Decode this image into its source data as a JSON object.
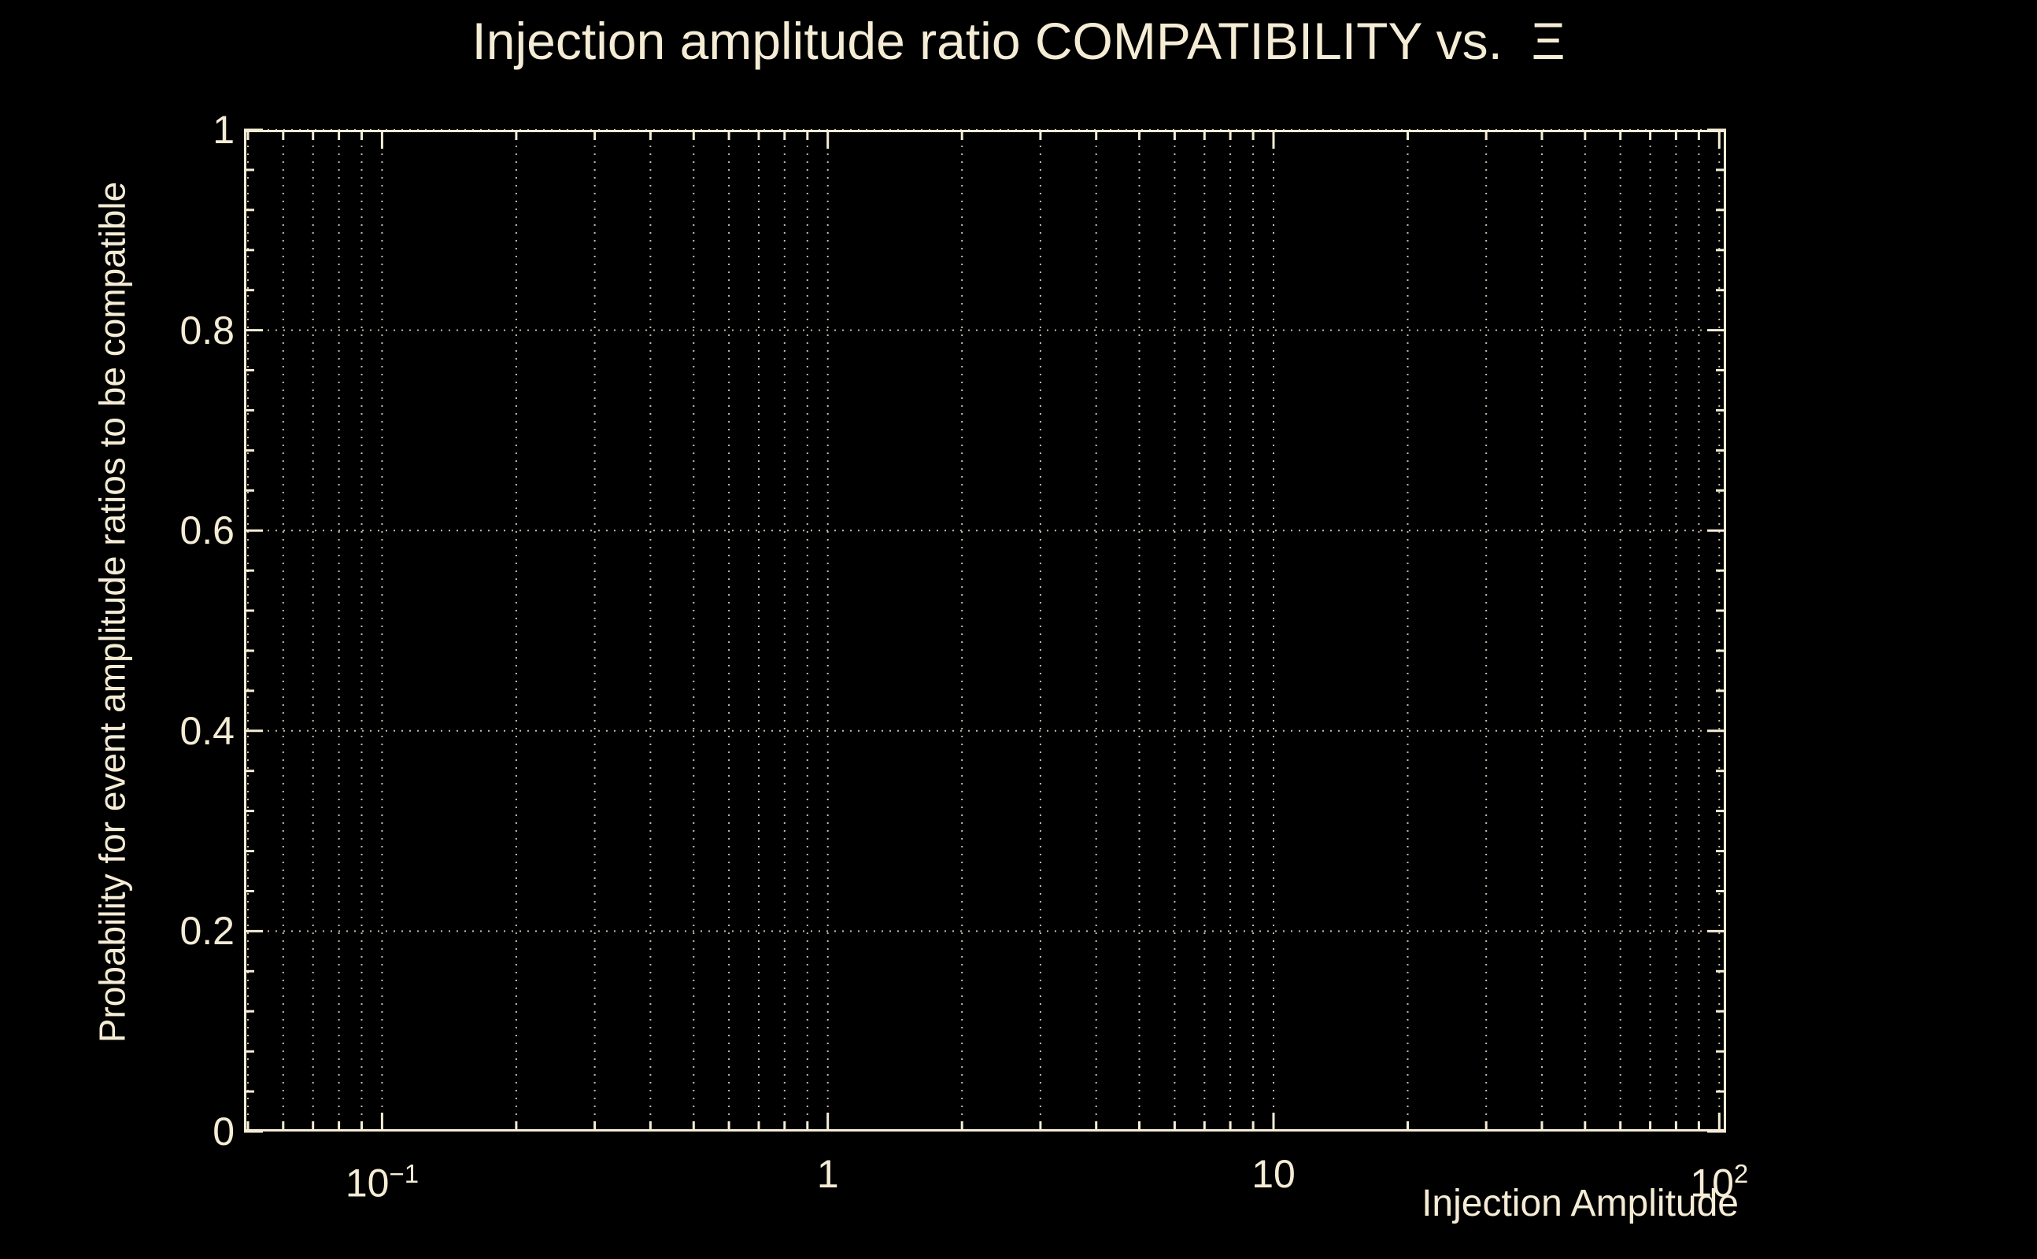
{
  "page": {
    "background": "#000000",
    "foreground": "#f5ecd5",
    "grid_color": "#f5ecd5"
  },
  "chart_data": {
    "type": "line",
    "title": "Injection amplitude ratio COMPATIBILITY vs.  Ξ",
    "xlabel": "Injection Amplitude",
    "ylabel": "Probability for event amplitude ratios to be compatible",
    "x_scale": "log",
    "y_scale": "linear",
    "xlim": [
      0.049,
      103.6
    ],
    "ylim": [
      0,
      1
    ],
    "grid": true,
    "legend": "none",
    "x_major_ticks": [
      0.1,
      1,
      10,
      100
    ],
    "x_tick_labels": [
      {
        "value": 0.1,
        "base": "10",
        "exp": "−1"
      },
      {
        "value": 1,
        "base": "1"
      },
      {
        "value": 10,
        "base": "10"
      },
      {
        "value": 100,
        "base": "10",
        "exp": "2"
      }
    ],
    "y_ticks": [
      0,
      0.2,
      0.4,
      0.6,
      0.8,
      1
    ],
    "y_tick_labels": [
      "0",
      "0.2",
      "0.4",
      "0.6",
      "0.8",
      "1"
    ],
    "y_minor_step": 0.04,
    "series": []
  }
}
